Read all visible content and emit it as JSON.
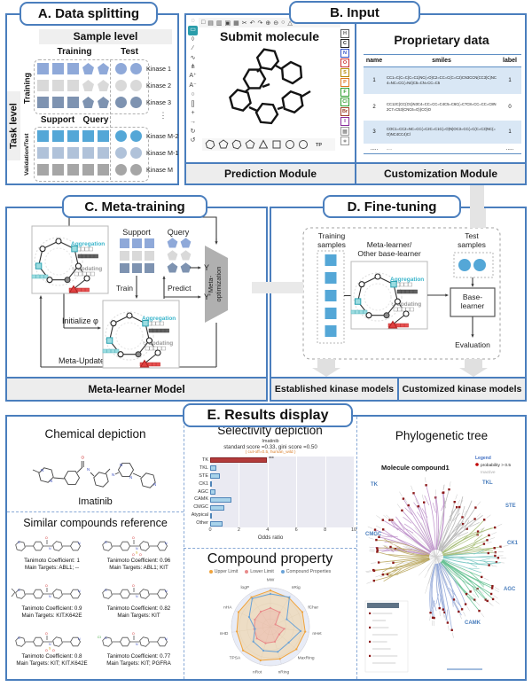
{
  "panels": {
    "a": {
      "title": "A. Data splitting",
      "sample_level": "Sample level",
      "task_level": "Task level",
      "col_training": "Training",
      "col_test": "Test",
      "group1_label": "Training",
      "group2_label": "Validation/Test",
      "support_label": "Support",
      "query_label": "Query",
      "ellipsis": "⋮",
      "rows": [
        {
          "label": "Kinase 1",
          "color": "#8fa9d9",
          "group": 1
        },
        {
          "label": "Kinase 2",
          "color": "#d9d9d9",
          "group": 1
        },
        {
          "label": "Kinase 3",
          "color": "#7e93b1",
          "group": 1
        },
        {
          "label": "Kinase M-2",
          "color": "#54a7d7",
          "group": 2
        },
        {
          "label": "Kinase M-1",
          "color": "#b0c2d9",
          "group": 2
        },
        {
          "label": "Kinase M",
          "color": "#a6a6a6",
          "group": 2
        }
      ]
    },
    "b": {
      "title": "B. Input",
      "prediction": {
        "submit_label": "Submit molecule",
        "footer": "Prediction Module",
        "top_tools": [
          {
            "name": "new-document-icon",
            "glyph": "□"
          },
          {
            "name": "open-icon",
            "glyph": "▤"
          },
          {
            "name": "save-icon",
            "glyph": "▥"
          },
          {
            "name": "copy-icon",
            "glyph": "▣"
          },
          {
            "name": "paste-icon",
            "glyph": "▦"
          },
          {
            "name": "cut-icon",
            "glyph": "✂"
          },
          {
            "name": "undo-icon",
            "glyph": "↶"
          },
          {
            "name": "redo-icon",
            "glyph": "↷"
          },
          {
            "name": "zoom-in-icon",
            "glyph": "⊕"
          },
          {
            "name": "zoom-out-icon",
            "glyph": "⊖"
          },
          {
            "name": "zoom-fit-icon",
            "glyph": "○"
          },
          {
            "name": "help-icon",
            "glyph": "△"
          }
        ],
        "left_tools": [
          {
            "name": "lasso-select-icon",
            "glyph": "◌"
          },
          {
            "name": "rect-select-icon",
            "glyph": "▭"
          },
          {
            "name": "eraser-icon",
            "glyph": "◊"
          },
          {
            "name": "single-bond-icon",
            "glyph": "∕"
          },
          {
            "name": "chain-icon",
            "glyph": "∿"
          },
          {
            "name": "fragment-icon",
            "glyph": "⋔"
          },
          {
            "name": "charge-plus-icon",
            "glyph": "A⁺"
          },
          {
            "name": "charge-minus-icon",
            "glyph": "A⁻"
          },
          {
            "name": "ring-icon",
            "glyph": "○"
          },
          {
            "name": "bracket-icon",
            "glyph": "[]"
          },
          {
            "name": "plus-icon",
            "glyph": "+"
          },
          {
            "name": "arrow-icon",
            "glyph": "→"
          },
          {
            "name": "rotate-icon",
            "glyph": "↻"
          },
          {
            "name": "cycle-icon",
            "glyph": "↺"
          }
        ],
        "elements": [
          {
            "symbol": "H",
            "color": "#5a5a5a"
          },
          {
            "symbol": "C",
            "color": "#222222"
          },
          {
            "symbol": "N",
            "color": "#3050c8"
          },
          {
            "symbol": "O",
            "color": "#cc2e2e"
          },
          {
            "symbol": "S",
            "color": "#b58900"
          },
          {
            "symbol": "P",
            "color": "#e07820"
          },
          {
            "symbol": "F",
            "color": "#2e9e2e"
          },
          {
            "symbol": "Cl",
            "color": "#2e9e2e"
          },
          {
            "symbol": "Br",
            "color": "#a0402a"
          },
          {
            "symbol": "I",
            "color": "#8a2e9e"
          }
        ],
        "extra_elements": [
          {
            "name": "periodic-table-icon",
            "glyph": "▦"
          },
          {
            "name": "stereo-icon",
            "glyph": "∗"
          }
        ],
        "templates": [
          "hexagon",
          "pentagon",
          "hexagon",
          "pentagon",
          "triangle",
          "square",
          "circle",
          "circle"
        ],
        "template_label": "TP"
      },
      "customization": {
        "title": "Proprietary data",
        "footer": "Customization Module",
        "headers": [
          "name",
          "smiles",
          "label"
        ],
        "rows": [
          {
            "name": "1",
            "smiles": "CC1=C(C=C(C=C1)NC(=O)C2=CC=C(C=C2)CN3CCN(CC3)C)NC4=NC=CC(=N4)C5=CN=CC=C5",
            "label": "1"
          },
          {
            "name": "2",
            "smiles": "CC12C(CC(O1)N3C4=CC=CC=C4C5=C6C(=C7C8=CC=CC=C8N2C7=C53)CNC6=O)(CO)O",
            "label": "0"
          },
          {
            "name": "3",
            "smiles": "COC1=CC2=NC=CC(=C2C=C1C(=O)N)OC3=CC(=C(C=C3)NC(=O)NC4CC4)Cl",
            "label": "1"
          },
          {
            "name": ".....",
            "smiles": ".....",
            "label": "....."
          }
        ]
      }
    },
    "c": {
      "title": "C. Meta-training",
      "footer": "Meta-learner Model",
      "support": "Support",
      "query": "Query",
      "train": "Train",
      "predict": "Predict",
      "y_true": "Y",
      "y_pred": "Y'",
      "meta_opt_1": "Meta-",
      "meta_opt_2": "optimization",
      "initialize": "Initialize φ",
      "meta_update": "Meta-Update",
      "aggregation": "Aggregation",
      "updating": "Updating"
    },
    "d": {
      "title": "D. Fine-tuning",
      "training_samples_1": "Training",
      "training_samples_2": "samples",
      "test_samples_1": "Test",
      "test_samples_2": "samples",
      "meta_learner_1": "Meta-learner/",
      "meta_learner_2": "Other base-learner",
      "base_learner_1": "Base-",
      "base_learner_2": "learner",
      "evaluation": "Evaluation",
      "footer_left": "Established kinase models",
      "footer_right": "Customized kinase models",
      "aggregation": "Aggregation",
      "updating": "Updating",
      "sample_color": "#54a7d7"
    },
    "e": {
      "title": "E. Results display",
      "chemical": {
        "title": "Chemical depiction",
        "molecule_name": "Imatinib",
        "similar_title": "Similar compounds reference",
        "compounds": [
          {
            "line1": "Tanimoto Coefficient: 1",
            "line2": "Main Targets: ABL1;  --"
          },
          {
            "line1": "Tanimoto Coefficient: 0.96",
            "line2": "Main Targets: ABL1;  KIT"
          },
          {
            "line1": "Tanimoto Coefficient: 0.9",
            "line2": "Main Targets:  KIT.K642E"
          },
          {
            "line1": "Tanimoto Coefficient: 0.82",
            "line2": "Main Targets:  KIT"
          },
          {
            "line1": "Tanimoto Coefficient: 0.8",
            "line2": "Main Targets: KIT;  KIT.K642E"
          },
          {
            "line1": "Tanimoto Coefficient: 0.77",
            "line2": "Main Targets: KIT;  PGFRA"
          }
        ]
      },
      "selectivity": {
        "title": "Selectivity depiction"
      },
      "property": {
        "title": "Compound property"
      },
      "tree": {
        "title": "Phylogenetic tree",
        "compound_label": "Molecule compound1",
        "legend_title": "Legend",
        "legend_active": "probability > 0.5",
        "legend_inactive": "Inactive",
        "dot_color": "#8c1a1a",
        "legend_dot_color": "#c00000",
        "groups": [
          {
            "name": "TK",
            "color": "#bd8fc9",
            "angle": -128,
            "spread": 95,
            "count": 22,
            "label": [
              14,
              42
            ]
          },
          {
            "name": "TKL",
            "color": "#b5b5b5",
            "angle": -58,
            "spread": 38,
            "count": 12,
            "label": [
              140,
              40
            ]
          },
          {
            "name": "STE",
            "color": "#a9bf7a",
            "angle": -20,
            "spread": 30,
            "count": 12,
            "label": [
              166,
              66
            ]
          },
          {
            "name": "CK1",
            "color": "#7cc9c4",
            "angle": 6,
            "spread": 20,
            "count": 8,
            "label": [
              168,
              108
            ]
          },
          {
            "name": "AGC",
            "color": "#64c191",
            "angle": 38,
            "spread": 30,
            "count": 12,
            "label": [
              164,
              160
            ]
          },
          {
            "name": "CAMK",
            "color": "#93a8d8",
            "angle": 78,
            "spread": 34,
            "count": 14,
            "label": [
              120,
              198
            ]
          },
          {
            "name": "CMGC",
            "color": "#b9a65e",
            "angle": 176,
            "spread": 46,
            "count": 14,
            "label": [
              8,
              98
            ]
          }
        ]
      }
    }
  },
  "chart_data": [
    {
      "type": "bar",
      "orientation": "horizontal",
      "title": "Imatinib",
      "subtitle": "standard score =0.33, gini score =0.50",
      "note": "( cut-off=0.5, human_wild )",
      "categories": [
        "TK",
        "TKL",
        "STE",
        "CK1",
        "AGC",
        "CAMK",
        "CMGC",
        "Atypical",
        "Other"
      ],
      "values": [
        3.95,
        0.45,
        0.7,
        0.08,
        0.4,
        1.5,
        1.0,
        0.15,
        0.85
      ],
      "highlight_category": "TK",
      "highlight_color": "#b23b3b",
      "bar_color": "#a9d3ea",
      "annotation": "***",
      "xlabel": "Odds ratio",
      "xlim": [
        0,
        10
      ],
      "xticks": [
        0,
        2,
        4,
        6,
        8,
        10
      ],
      "plot_bg": "#eaeaf2"
    },
    {
      "type": "radar",
      "title": "Compound property",
      "axes": [
        "MW",
        "nRig",
        "fChar",
        "nHet",
        "MaxRing",
        "nRing",
        "nRot",
        "TPSA",
        "nHD",
        "nHA",
        "logP"
      ],
      "series": [
        {
          "name": "Upper Limit",
          "color": "#f0a33c",
          "values": [
            0.93,
            0.88,
            0.9,
            0.9,
            0.88,
            0.86,
            0.9,
            0.93,
            0.87,
            0.9,
            0.9
          ]
        },
        {
          "name": "Lower Limit",
          "color": "#e88b8b",
          "values": [
            0.48,
            0.44,
            0.14,
            0.36,
            0.3,
            0.4,
            0.44,
            0.46,
            0.42,
            0.44,
            0.46
          ]
        },
        {
          "name": "Compound Properties",
          "color": "#6aa3d8",
          "values": [
            0.84,
            0.9,
            0.46,
            0.78,
            0.62,
            0.67,
            0.64,
            0.58,
            0.4,
            0.6,
            0.86
          ]
        }
      ]
    }
  ]
}
